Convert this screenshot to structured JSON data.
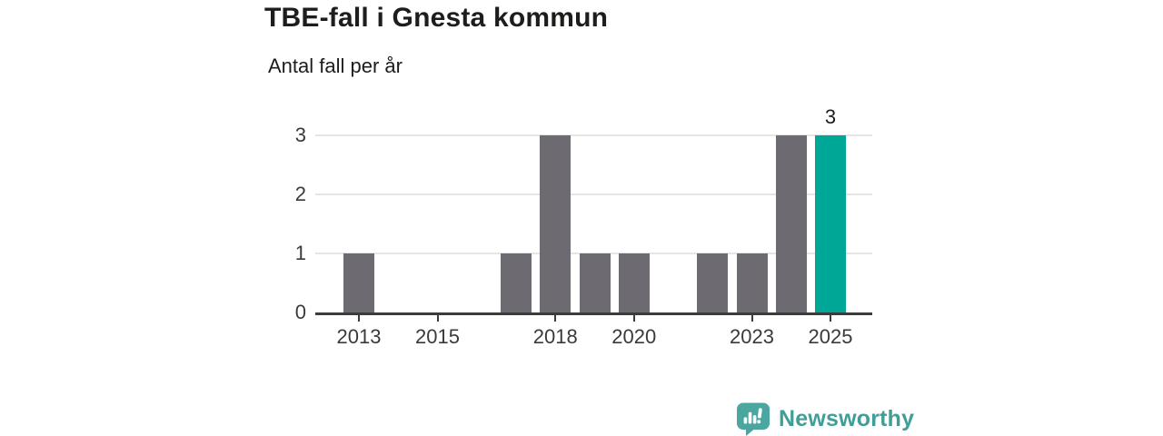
{
  "header": {
    "title": "TBE-fall i Gnesta kommun",
    "subtitle": "Antal fall per år"
  },
  "chart_data": {
    "type": "bar",
    "title": "TBE-fall i Gnesta kommun",
    "subtitle": "Antal fall per år",
    "xlabel": "",
    "ylabel": "Antal fall per år",
    "categories": [
      "2013",
      "2014",
      "2015",
      "2016",
      "2017",
      "2018",
      "2019",
      "2020",
      "2021",
      "2022",
      "2023",
      "2024",
      "2025"
    ],
    "values": [
      1,
      0,
      0,
      0,
      1,
      3,
      1,
      1,
      0,
      1,
      1,
      3,
      3
    ],
    "highlight_category": "2025",
    "annotation": {
      "category": "2025",
      "label": "3"
    },
    "x_tick_labels": [
      "2013",
      "2015",
      "2018",
      "2020",
      "2023",
      "2025"
    ],
    "y_ticks": [
      "0",
      "1",
      "2",
      "3"
    ],
    "ylim": [
      0,
      3
    ],
    "grid": "horizontal",
    "legend_position": "none",
    "colors": {
      "bar": "#6e6a71",
      "highlight": "#00a696",
      "grid": "#e5e5e5",
      "axis": "#3b3b3b",
      "tick_text": "#3a3a3a"
    }
  },
  "branding": {
    "name": "Newsworthy",
    "icon": "newsworthy-bubble-chart-icon",
    "icon_color": "#4ba6a0",
    "text_color": "#3f9e98"
  }
}
